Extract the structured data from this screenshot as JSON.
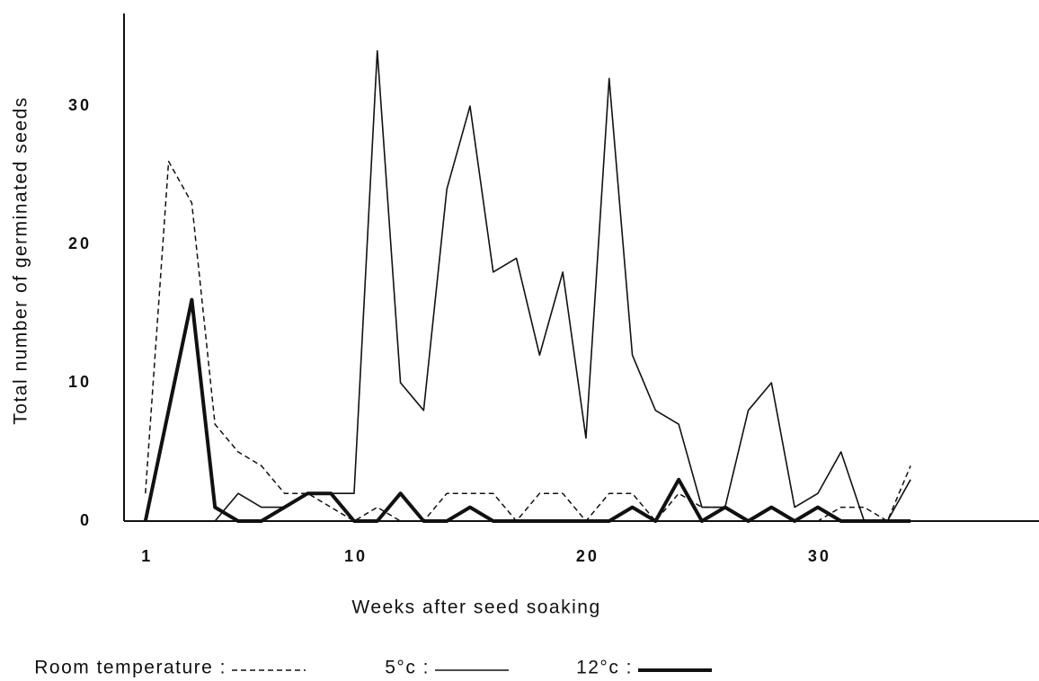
{
  "chart_data": {
    "type": "line",
    "y_label": "Total number of germinated seeds",
    "x_label": "Weeks after seed soaking",
    "x": [
      1,
      2,
      3,
      4,
      5,
      6,
      7,
      8,
      9,
      10,
      11,
      12,
      13,
      14,
      15,
      16,
      17,
      18,
      19,
      20,
      21,
      22,
      23,
      24,
      25,
      26,
      27,
      28,
      29,
      30,
      31,
      32,
      33,
      34
    ],
    "series": [
      {
        "name": "Room temperature :",
        "color": "#111111",
        "style": "dashed",
        "width": 1.5,
        "values": [
          2,
          26,
          23,
          7,
          5,
          4,
          2,
          2,
          1,
          0,
          1,
          0,
          0,
          2,
          2,
          2,
          0,
          2,
          2,
          0,
          2,
          2,
          0,
          2,
          1,
          1,
          0,
          0,
          0,
          0,
          1,
          1,
          0,
          4
        ]
      },
      {
        "name": "5°c :",
        "color": "#111111",
        "style": "solid",
        "width": 1.6,
        "values": [
          0,
          0,
          0,
          0,
          2,
          1,
          1,
          2,
          2,
          2,
          34,
          10,
          8,
          24,
          30,
          18,
          19,
          12,
          18,
          6,
          32,
          12,
          8,
          7,
          1,
          1,
          8,
          10,
          1,
          2,
          5,
          0,
          0,
          3
        ]
      },
      {
        "name": "12°c :",
        "color": "#111111",
        "style": "solid",
        "width": 4,
        "values": [
          0,
          8,
          16,
          1,
          0,
          0,
          1,
          2,
          2,
          0,
          0,
          2,
          0,
          0,
          1,
          0,
          0,
          0,
          0,
          0,
          0,
          1,
          0,
          3,
          0,
          1,
          0,
          1,
          0,
          1,
          0,
          0,
          0,
          0
        ]
      }
    ],
    "xlim": [
      0,
      39.5
    ],
    "ylim": [
      0,
      36.5
    ],
    "xticks": [
      1,
      10,
      20,
      30
    ],
    "yticks": [
      0,
      10,
      20,
      30
    ]
  }
}
